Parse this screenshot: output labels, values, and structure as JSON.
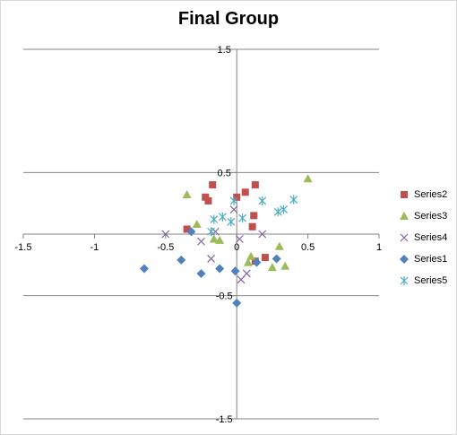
{
  "chart_data": {
    "type": "scatter",
    "title": "Final Group",
    "xlim": [
      -1.5,
      1
    ],
    "ylim": [
      -1.5,
      1.5
    ],
    "x_ticks": [
      -1.5,
      -1,
      -0.5,
      0,
      0.5,
      1
    ],
    "y_ticks": [
      -1.5,
      -0.5,
      0.5,
      1.5
    ],
    "x_tick_labels": [
      "-1.5",
      "-1",
      "-0.5",
      "0",
      "0.5",
      "1"
    ],
    "y_tick_labels": [
      "-1.5",
      "-0.5",
      "0.5",
      "1.5"
    ],
    "grid": "horizontal major",
    "legend_position": "right",
    "series": [
      {
        "name": "Series2",
        "marker": "square",
        "color": "#C0504D",
        "points": [
          [
            -0.17,
            0.4
          ],
          [
            -0.2,
            0.27
          ],
          [
            -0.22,
            0.3
          ],
          [
            0,
            0.3
          ],
          [
            0.06,
            0.34
          ],
          [
            0.13,
            0.4
          ],
          [
            0.12,
            0.15
          ],
          [
            0.11,
            0.06
          ],
          [
            -0.35,
            0.04
          ],
          [
            0.2,
            -0.19
          ],
          [
            0.13,
            -0.22
          ]
        ]
      },
      {
        "name": "Series3",
        "marker": "triangle",
        "color": "#9BBB59",
        "points": [
          [
            0.5,
            0.45
          ],
          [
            -0.35,
            0.32
          ],
          [
            -0.28,
            0.08
          ],
          [
            -0.16,
            -0.04
          ],
          [
            -0.12,
            -0.05
          ],
          [
            0.1,
            -0.18
          ],
          [
            0.08,
            -0.23
          ],
          [
            0.25,
            -0.27
          ],
          [
            0.34,
            -0.26
          ],
          [
            0.3,
            -0.1
          ]
        ]
      },
      {
        "name": "Series4",
        "marker": "x",
        "color": "#8064A2",
        "points": [
          [
            -0.5,
            0.0
          ],
          [
            -0.15,
            0.02
          ],
          [
            -0.02,
            0.2
          ],
          [
            0.02,
            -0.04
          ],
          [
            -0.25,
            -0.06
          ],
          [
            0.18,
            0.0
          ],
          [
            -0.18,
            -0.2
          ],
          [
            0.07,
            -0.32
          ],
          [
            0.03,
            -0.37
          ]
        ]
      },
      {
        "name": "Series1",
        "marker": "diamond",
        "color": "#4F81BD",
        "points": [
          [
            -0.65,
            -0.28
          ],
          [
            -0.39,
            -0.21
          ],
          [
            -0.25,
            -0.32
          ],
          [
            -0.12,
            -0.28
          ],
          [
            -0.01,
            -0.3
          ],
          [
            0.14,
            -0.23
          ],
          [
            0.28,
            -0.2
          ],
          [
            -0.32,
            0.02
          ],
          [
            0.0,
            -0.56
          ]
        ]
      },
      {
        "name": "Series5",
        "marker": "asterisk",
        "color": "#4BACC6",
        "points": [
          [
            -0.02,
            0.27
          ],
          [
            -0.16,
            0.12
          ],
          [
            -0.1,
            0.14
          ],
          [
            -0.04,
            0.1
          ],
          [
            0.04,
            0.13
          ],
          [
            0.18,
            0.27
          ],
          [
            0.33,
            0.2
          ],
          [
            0.29,
            0.18
          ],
          [
            0.4,
            0.28
          ],
          [
            -0.18,
            0.02
          ]
        ]
      }
    ]
  }
}
